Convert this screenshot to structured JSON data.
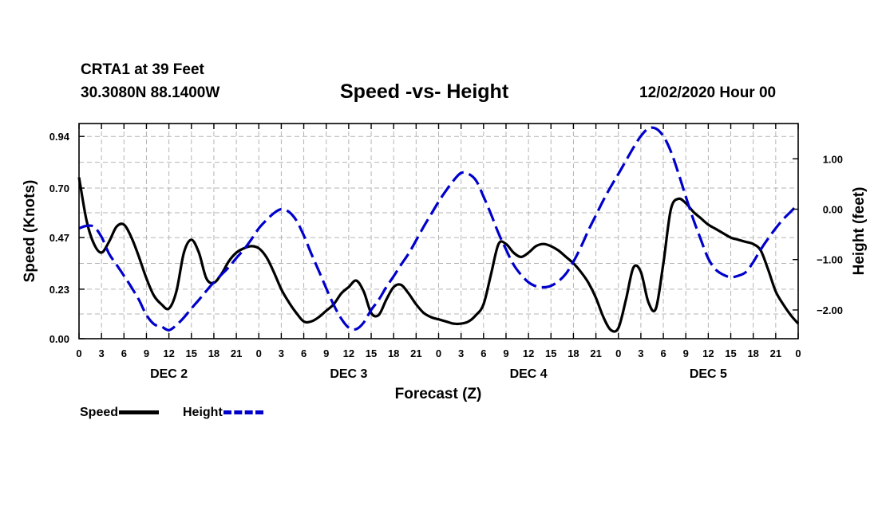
{
  "header": {
    "station": "CRTA1 at 39 Feet",
    "coords": "30.3080N 88.1400W",
    "title": "Speed -vs- Height",
    "run": "12/02/2020 Hour 00"
  },
  "legend": {
    "speed_label": "Speed",
    "height_label": "Height"
  },
  "colors": {
    "speed": "#000000",
    "height": "#0000cc",
    "grid": "#b4b4b4"
  },
  "chart_data": {
    "type": "line",
    "title": "Speed -vs- Height",
    "xlabel": "Forecast (Z)",
    "ylabel_left": "Speed (Knots)",
    "ylabel_right": "Height (feet)",
    "xlim": [
      0,
      96
    ],
    "ylim_left": [
      0,
      1.0
    ],
    "ylim_right": [
      -2.57,
      1.7
    ],
    "grid": true,
    "x_ticks": [
      0,
      3,
      6,
      9,
      12,
      15,
      18,
      21,
      24,
      27,
      30,
      33,
      36,
      39,
      42,
      45,
      48,
      51,
      54,
      57,
      60,
      63,
      66,
      69,
      72,
      75,
      78,
      81,
      84,
      87,
      90,
      93,
      96
    ],
    "x_tick_labels": [
      "0",
      "3",
      "6",
      "9",
      "12",
      "15",
      "18",
      "21",
      "0",
      "3",
      "6",
      "9",
      "12",
      "15",
      "18",
      "21",
      "0",
      "3",
      "6",
      "9",
      "12",
      "15",
      "18",
      "21",
      "0",
      "3",
      "6",
      "9",
      "12",
      "15",
      "18",
      "21",
      "0"
    ],
    "day_labels": [
      {
        "label": "DEC 2",
        "x": 12
      },
      {
        "label": "DEC 3",
        "x": 36
      },
      {
        "label": "DEC 4",
        "x": 60
      },
      {
        "label": "DEC 5",
        "x": 84
      }
    ],
    "y_left_ticks": [
      0.0,
      0.23,
      0.47,
      0.7,
      0.94
    ],
    "y_left_tick_labels": [
      "0.00",
      "0.23",
      "0.47",
      "0.70",
      "0.94"
    ],
    "y_right_ticks": [
      1.0,
      0.0,
      -1.0,
      -2.0
    ],
    "y_right_tick_labels": [
      "1.00",
      "0.00",
      "−1.00",
      "−2.00"
    ],
    "series": [
      {
        "name": "Speed",
        "axis": "left",
        "style": "solid",
        "x": [
          0,
          1,
          2,
          3,
          4,
          5,
          6,
          7,
          8,
          9,
          10,
          11,
          12,
          13,
          14,
          15,
          16,
          17,
          18,
          19,
          20,
          21,
          22,
          23,
          24,
          25,
          26,
          27,
          28,
          29,
          30,
          31,
          32,
          33,
          34,
          35,
          36,
          37,
          38,
          39,
          40,
          41,
          42,
          43,
          44,
          45,
          46,
          47,
          48,
          49,
          50,
          51,
          52,
          53,
          54,
          55,
          56,
          57,
          58,
          59,
          60,
          61,
          62,
          63,
          64,
          65,
          66,
          67,
          68,
          69,
          70,
          71,
          72,
          73,
          74,
          75,
          76,
          77,
          78,
          79,
          80,
          81,
          82,
          83,
          84,
          85,
          86,
          87,
          88,
          89,
          90,
          91,
          92,
          93,
          94,
          95,
          96
        ],
        "values": [
          0.75,
          0.55,
          0.44,
          0.4,
          0.45,
          0.52,
          0.53,
          0.47,
          0.38,
          0.28,
          0.2,
          0.16,
          0.14,
          0.22,
          0.4,
          0.46,
          0.4,
          0.28,
          0.26,
          0.3,
          0.36,
          0.4,
          0.42,
          0.43,
          0.42,
          0.38,
          0.31,
          0.23,
          0.17,
          0.12,
          0.08,
          0.08,
          0.1,
          0.13,
          0.16,
          0.21,
          0.24,
          0.27,
          0.22,
          0.12,
          0.11,
          0.18,
          0.24,
          0.25,
          0.21,
          0.16,
          0.12,
          0.1,
          0.09,
          0.08,
          0.07,
          0.07,
          0.08,
          0.11,
          0.16,
          0.3,
          0.44,
          0.44,
          0.4,
          0.38,
          0.4,
          0.43,
          0.44,
          0.43,
          0.41,
          0.38,
          0.35,
          0.31,
          0.26,
          0.19,
          0.1,
          0.04,
          0.05,
          0.18,
          0.33,
          0.31,
          0.17,
          0.14,
          0.35,
          0.6,
          0.65,
          0.63,
          0.59,
          0.56,
          0.53,
          0.51,
          0.49,
          0.47,
          0.46,
          0.45,
          0.44,
          0.41,
          0.32,
          0.22,
          0.16,
          0.11,
          0.07
        ]
      },
      {
        "name": "Height",
        "axis": "right",
        "style": "dashed",
        "x": [
          0,
          1,
          2,
          3,
          4,
          5,
          6,
          7,
          8,
          9,
          10,
          11,
          12,
          13,
          14,
          15,
          16,
          17,
          18,
          19,
          20,
          21,
          22,
          23,
          24,
          25,
          26,
          27,
          28,
          29,
          30,
          31,
          32,
          33,
          34,
          35,
          36,
          37,
          38,
          39,
          40,
          41,
          42,
          43,
          44,
          45,
          46,
          47,
          48,
          49,
          50,
          51,
          52,
          53,
          54,
          55,
          56,
          57,
          58,
          59,
          60,
          61,
          62,
          63,
          64,
          65,
          66,
          67,
          68,
          69,
          70,
          71,
          72,
          73,
          74,
          75,
          76,
          77,
          78,
          79,
          80,
          81,
          82,
          83,
          84,
          85,
          86,
          87,
          88,
          89,
          90,
          91,
          92,
          93,
          94,
          95,
          96
        ],
        "values": [
          -0.38,
          -0.33,
          -0.35,
          -0.55,
          -0.88,
          -1.1,
          -1.32,
          -1.55,
          -1.8,
          -2.1,
          -2.28,
          -2.33,
          -2.4,
          -2.3,
          -2.15,
          -1.97,
          -1.8,
          -1.62,
          -1.45,
          -1.3,
          -1.15,
          -0.97,
          -0.8,
          -0.6,
          -0.38,
          -0.22,
          -0.08,
          0.0,
          -0.05,
          -0.22,
          -0.52,
          -0.88,
          -1.22,
          -1.57,
          -1.9,
          -2.17,
          -2.35,
          -2.38,
          -2.25,
          -2.0,
          -1.8,
          -1.55,
          -1.33,
          -1.1,
          -0.88,
          -0.62,
          -0.35,
          -0.1,
          0.15,
          0.37,
          0.57,
          0.72,
          0.7,
          0.57,
          0.25,
          -0.1,
          -0.48,
          -0.8,
          -1.1,
          -1.3,
          -1.45,
          -1.53,
          -1.55,
          -1.52,
          -1.43,
          -1.28,
          -1.04,
          -0.75,
          -0.42,
          -0.12,
          0.18,
          0.45,
          0.7,
          0.96,
          1.22,
          1.45,
          1.6,
          1.6,
          1.45,
          1.15,
          0.72,
          0.25,
          -0.2,
          -0.6,
          -0.98,
          -1.2,
          -1.3,
          -1.35,
          -1.32,
          -1.25,
          -1.05,
          -0.8,
          -0.58,
          -0.38,
          -0.2,
          -0.05,
          0.1
        ]
      }
    ]
  }
}
